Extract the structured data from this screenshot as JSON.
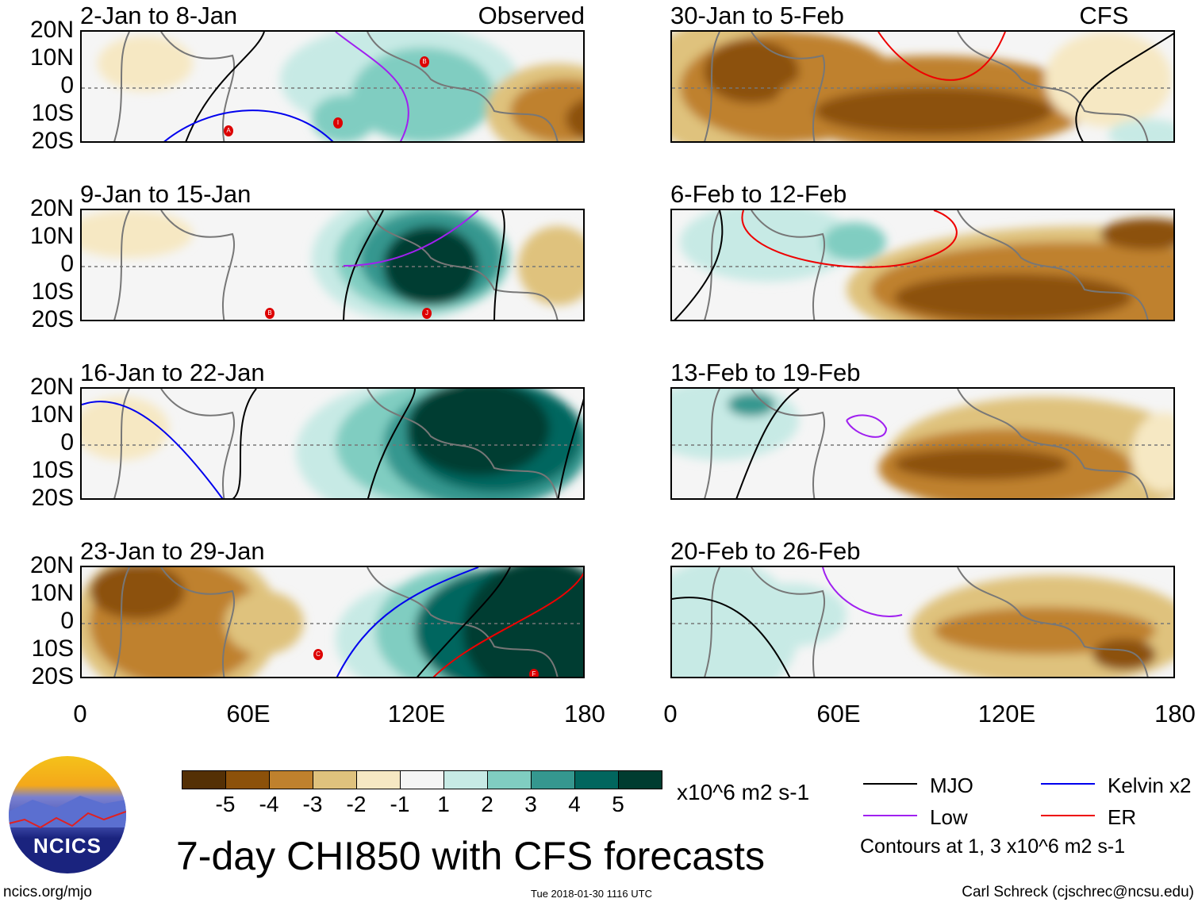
{
  "panels": [
    {
      "title": "2-Jan to 8-Jan",
      "label": "Observed",
      "storms": [
        "A",
        "I",
        "B"
      ]
    },
    {
      "title": "30-Jan to 5-Feb",
      "label": "CFS Forecast",
      "storms": []
    },
    {
      "title": "9-Jan to 15-Jan",
      "label": "",
      "storms": [
        "B",
        "J"
      ]
    },
    {
      "title": "6-Feb to 12-Feb",
      "label": "",
      "storms": []
    },
    {
      "title": "16-Jan to 22-Jan",
      "label": "",
      "storms": []
    },
    {
      "title": "13-Feb to 19-Feb",
      "label": "",
      "storms": []
    },
    {
      "title": "23-Jan to 29-Jan",
      "label": "",
      "storms": [
        "C",
        "F"
      ]
    },
    {
      "title": "20-Feb to 26-Feb",
      "label": "",
      "storms": []
    }
  ],
  "lat_labels": [
    "20N",
    "10N",
    "0",
    "10S",
    "20S"
  ],
  "lon_labels": [
    "0",
    "60E",
    "120E",
    "180"
  ],
  "colorbar": {
    "colors": [
      "#543005",
      "#8c510a",
      "#bf812d",
      "#dfc27d",
      "#f6e8c3",
      "#f5f5f5",
      "#c7eae5",
      "#80cdc1",
      "#35978f",
      "#01665e",
      "#003c30"
    ],
    "ticks": [
      "-5",
      "-4",
      "-3",
      "-2",
      "-1",
      "1",
      "2",
      "3",
      "4",
      "5"
    ],
    "units": "x10^6 m2 s-1"
  },
  "title": "7-day CHI850 with CFS forecasts",
  "legend": {
    "items": [
      {
        "label": "MJO",
        "color": "#000000"
      },
      {
        "label": "Kelvin x2",
        "color": "#0000ee"
      },
      {
        "label": "Low",
        "color": "#a020f0"
      },
      {
        "label": "ER",
        "color": "#ee0000"
      }
    ],
    "note": "Contours at 1, 3 x10^6 m2 s-1"
  },
  "logo_text": "NCICS",
  "url": "ncics.org/mjo",
  "timestamp": "Tue 2018-01-30 1116 UTC",
  "author": "Carl Schreck (cjschrec@ncsu.edu)"
}
